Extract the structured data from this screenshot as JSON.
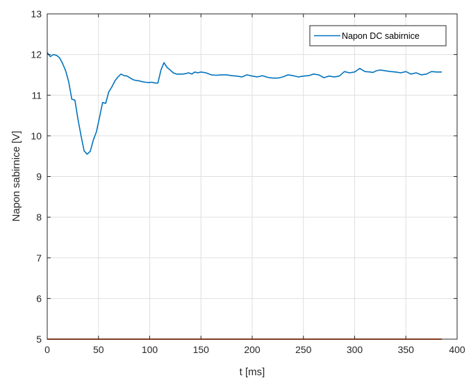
{
  "chart_data": {
    "type": "line",
    "xlabel": "t [ms]",
    "ylabel": "Napon sabirnice [V]",
    "xlim": [
      0,
      400
    ],
    "ylim": [
      5,
      13
    ],
    "xticks": [
      "0",
      "50",
      "100",
      "150",
      "200",
      "250",
      "300",
      "350",
      "400"
    ],
    "yticks": [
      "5",
      "6",
      "7",
      "8",
      "9",
      "10",
      "11",
      "12",
      "13"
    ],
    "grid": true,
    "legend_position": "top-right",
    "series": [
      {
        "name": "Napon DC sabirnice",
        "color": "#0072BD",
        "x": [
          0,
          3,
          6,
          9,
          12,
          15,
          18,
          21,
          24,
          27,
          30,
          33,
          36,
          39,
          42,
          45,
          48,
          51,
          54,
          57,
          60,
          63,
          66,
          69,
          72,
          75,
          78,
          81,
          84,
          87,
          90,
          93,
          96,
          99,
          102,
          105,
          108,
          111,
          114,
          117,
          120,
          123,
          126,
          129,
          132,
          135,
          138,
          141,
          144,
          147,
          150,
          155,
          160,
          165,
          170,
          175,
          180,
          185,
          190,
          195,
          200,
          205,
          210,
          215,
          220,
          225,
          230,
          235,
          240,
          245,
          250,
          255,
          260,
          265,
          270,
          275,
          280,
          285,
          290,
          295,
          300,
          305,
          310,
          315,
          318,
          321,
          325,
          330,
          335,
          340,
          345,
          350,
          355,
          360,
          365,
          370,
          375,
          380,
          385
        ],
        "y": [
          12.05,
          11.95,
          12.0,
          11.98,
          11.92,
          11.78,
          11.6,
          11.32,
          10.9,
          10.88,
          10.4,
          10.0,
          9.63,
          9.55,
          9.62,
          9.9,
          10.1,
          10.45,
          10.82,
          10.8,
          11.08,
          11.2,
          11.35,
          11.45,
          11.52,
          11.48,
          11.47,
          11.42,
          11.38,
          11.36,
          11.35,
          11.33,
          11.32,
          11.31,
          11.32,
          11.3,
          11.3,
          11.62,
          11.8,
          11.68,
          11.62,
          11.55,
          11.52,
          11.52,
          11.52,
          11.53,
          11.55,
          11.52,
          11.57,
          11.55,
          11.57,
          11.55,
          11.5,
          11.49,
          11.5,
          11.5,
          11.48,
          11.47,
          11.45,
          11.5,
          11.47,
          11.45,
          11.48,
          11.44,
          11.42,
          11.42,
          11.45,
          11.5,
          11.48,
          11.45,
          11.47,
          11.48,
          11.52,
          11.5,
          11.43,
          11.47,
          11.45,
          11.47,
          11.58,
          11.55,
          11.57,
          11.66,
          11.58,
          11.57,
          11.56,
          11.6,
          11.62,
          11.6,
          11.58,
          11.57,
          11.55,
          11.58,
          11.52,
          11.55,
          11.5,
          11.52,
          11.58,
          11.57,
          11.57
        ]
      },
      {
        "color": "#D95319",
        "x": [
          0,
          385
        ],
        "y": [
          5,
          5
        ]
      }
    ]
  }
}
